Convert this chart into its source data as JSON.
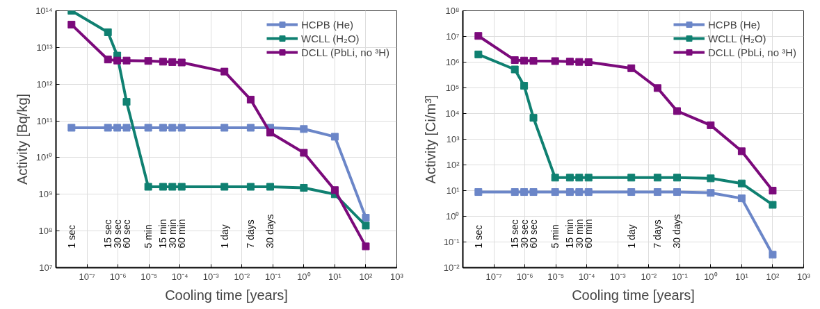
{
  "chart_data": [
    {
      "type": "line",
      "xlabel": "Cooling time [years]",
      "ylabel": "Activity [Bq/kg]",
      "log": "xy",
      "grid": true,
      "legend": "top right",
      "marker": "square",
      "line_style": "solid",
      "x": [
        3.17e-08,
        4.75e-07,
        9.5e-07,
        1.9e-06,
        9.5e-06,
        2.85e-05,
        5.7e-05,
        0.000114,
        0.00274,
        0.0192,
        0.082,
        1,
        10,
        100
      ],
      "xlim": [
        1e-08,
        1000
      ],
      "ylim": [
        10000000.0,
        100000000000000.0
      ],
      "xticks": [
        {
          "value": 1e-08,
          "label": null
        },
        {
          "value": 1e-07,
          "label": "10⁻⁷"
        },
        {
          "value": 1e-06,
          "label": "10⁻⁶"
        },
        {
          "value": 1e-05,
          "label": "10⁻⁵"
        },
        {
          "value": 0.0001,
          "label": "10⁻⁴"
        },
        {
          "value": 0.001,
          "label": "10⁻³"
        },
        {
          "value": 0.01,
          "label": "10⁻²"
        },
        {
          "value": 0.1,
          "label": "10⁻¹"
        },
        {
          "value": 1,
          "label": "10⁰"
        },
        {
          "value": 10,
          "label": "10¹"
        },
        {
          "value": 100,
          "label": "10²"
        },
        {
          "value": 1000,
          "label": "10³"
        }
      ],
      "yticks": [
        {
          "value": 10000000.0,
          "label": "10⁷"
        },
        {
          "value": 100000000.0,
          "label": "10⁸"
        },
        {
          "value": 1000000000.0,
          "label": "10⁹"
        },
        {
          "value": 10000000000.0,
          "label": "10¹⁰"
        },
        {
          "value": 100000000000.0,
          "label": "10¹¹"
        },
        {
          "value": 1000000000000.0,
          "label": "10¹²"
        },
        {
          "value": 10000000000000.0,
          "label": "10¹³"
        },
        {
          "value": 100000000000000.0,
          "label": "10¹⁴"
        }
      ],
      "series": [
        {
          "name": "HCPB (He)",
          "color": "#6b86c8",
          "values": [
            65000000000.0,
            65000000000.0,
            65000000000.0,
            65000000000.0,
            65000000000.0,
            65000000000.0,
            65000000000.0,
            65000000000.0,
            65000000000.0,
            65000000000.0,
            65000000000.0,
            60000000000.0,
            37000000000.0,
            230000000.0
          ]
        },
        {
          "name": "WCLL (H₂O)",
          "color": "#0f8071",
          "values": [
            100000000000000.0,
            26000000000000.0,
            6000000000000.0,
            330000000000.0,
            1600000000.0,
            1600000000.0,
            1600000000.0,
            1600000000.0,
            1600000000.0,
            1600000000.0,
            1600000000.0,
            1500000000.0,
            1000000000.0,
            140000000.0
          ]
        },
        {
          "name": "DCLL (PbLi, no ³H)",
          "color": "#7b0a7b",
          "values": [
            42000000000000.0,
            4700000000000.0,
            4400000000000.0,
            4400000000000.0,
            4300000000000.0,
            4100000000000.0,
            4000000000000.0,
            3900000000000.0,
            2200000000000.0,
            380000000000.0,
            48000000000.0,
            13500000000.0,
            1300000000.0,
            38000000.0
          ]
        }
      ],
      "annotations": [
        "1 sec",
        "15 sec",
        "30 sec",
        "60 sec",
        "5 min",
        "15 min",
        "30 min",
        "60 min",
        "1 day",
        "7 days",
        "30 days"
      ]
    },
    {
      "type": "line",
      "xlabel": "Cooling time [years]",
      "ylabel": "Activity [Ci/m³]",
      "log": "xy",
      "grid": true,
      "legend": "top right",
      "marker": "square",
      "line_style": "solid",
      "x": [
        3.17e-08,
        4.75e-07,
        9.5e-07,
        1.9e-06,
        9.5e-06,
        2.85e-05,
        5.7e-05,
        0.000114,
        0.00274,
        0.0192,
        0.082,
        1,
        10,
        100
      ],
      "xlim": [
        1e-08,
        1000
      ],
      "ylim": [
        0.01,
        100000000.0
      ],
      "xticks": [
        {
          "value": 1e-08,
          "label": null
        },
        {
          "value": 1e-07,
          "label": "10⁻⁷"
        },
        {
          "value": 1e-06,
          "label": "10⁻⁶"
        },
        {
          "value": 1e-05,
          "label": "10⁻⁵"
        },
        {
          "value": 0.0001,
          "label": "10⁻⁴"
        },
        {
          "value": 0.001,
          "label": "10⁻³"
        },
        {
          "value": 0.01,
          "label": "10⁻²"
        },
        {
          "value": 0.1,
          "label": "10⁻¹"
        },
        {
          "value": 1,
          "label": "10⁰"
        },
        {
          "value": 10,
          "label": "10¹"
        },
        {
          "value": 100,
          "label": "10²"
        },
        {
          "value": 1000,
          "label": "10³"
        }
      ],
      "yticks": [
        {
          "value": 0.01,
          "label": "10⁻²"
        },
        {
          "value": 0.1,
          "label": "10⁻¹"
        },
        {
          "value": 1,
          "label": "10⁰"
        },
        {
          "value": 10,
          "label": "10¹"
        },
        {
          "value": 100,
          "label": "10²"
        },
        {
          "value": 1000,
          "label": "10³"
        },
        {
          "value": 10000.0,
          "label": "10⁴"
        },
        {
          "value": 100000.0,
          "label": "10⁵"
        },
        {
          "value": 1000000.0,
          "label": "10⁶"
        },
        {
          "value": 10000000.0,
          "label": "10⁷"
        },
        {
          "value": 100000000.0,
          "label": "10⁸"
        }
      ],
      "series": [
        {
          "name": "HCPB (He)",
          "color": "#6b86c8",
          "values": [
            8.8,
            8.8,
            8.8,
            8.8,
            8.8,
            8.8,
            8.8,
            8.8,
            8.8,
            8.8,
            8.8,
            8.2,
            5,
            0.032
          ]
        },
        {
          "name": "WCLL (H₂O)",
          "color": "#0f8071",
          "values": [
            2000000.0,
            520000.0,
            120000.0,
            6800,
            32,
            32,
            32,
            32,
            32,
            32,
            32,
            30,
            19,
            2.8
          ]
        },
        {
          "name": "DCLL (PbLi, no ³H)",
          "color": "#7b0a7b",
          "values": [
            10500000.0,
            1200000.0,
            1150000.0,
            1120000.0,
            1100000.0,
            1050000.0,
            1020000.0,
            1000000.0,
            580000.0,
            98000.0,
            12500.0,
            3500,
            340,
            10
          ]
        }
      ],
      "annotations": [
        "1 sec",
        "15 sec",
        "30 sec",
        "60 sec",
        "5 min",
        "15 min",
        "30 min",
        "60 min",
        "1 day",
        "7 days",
        "30 days"
      ]
    }
  ]
}
